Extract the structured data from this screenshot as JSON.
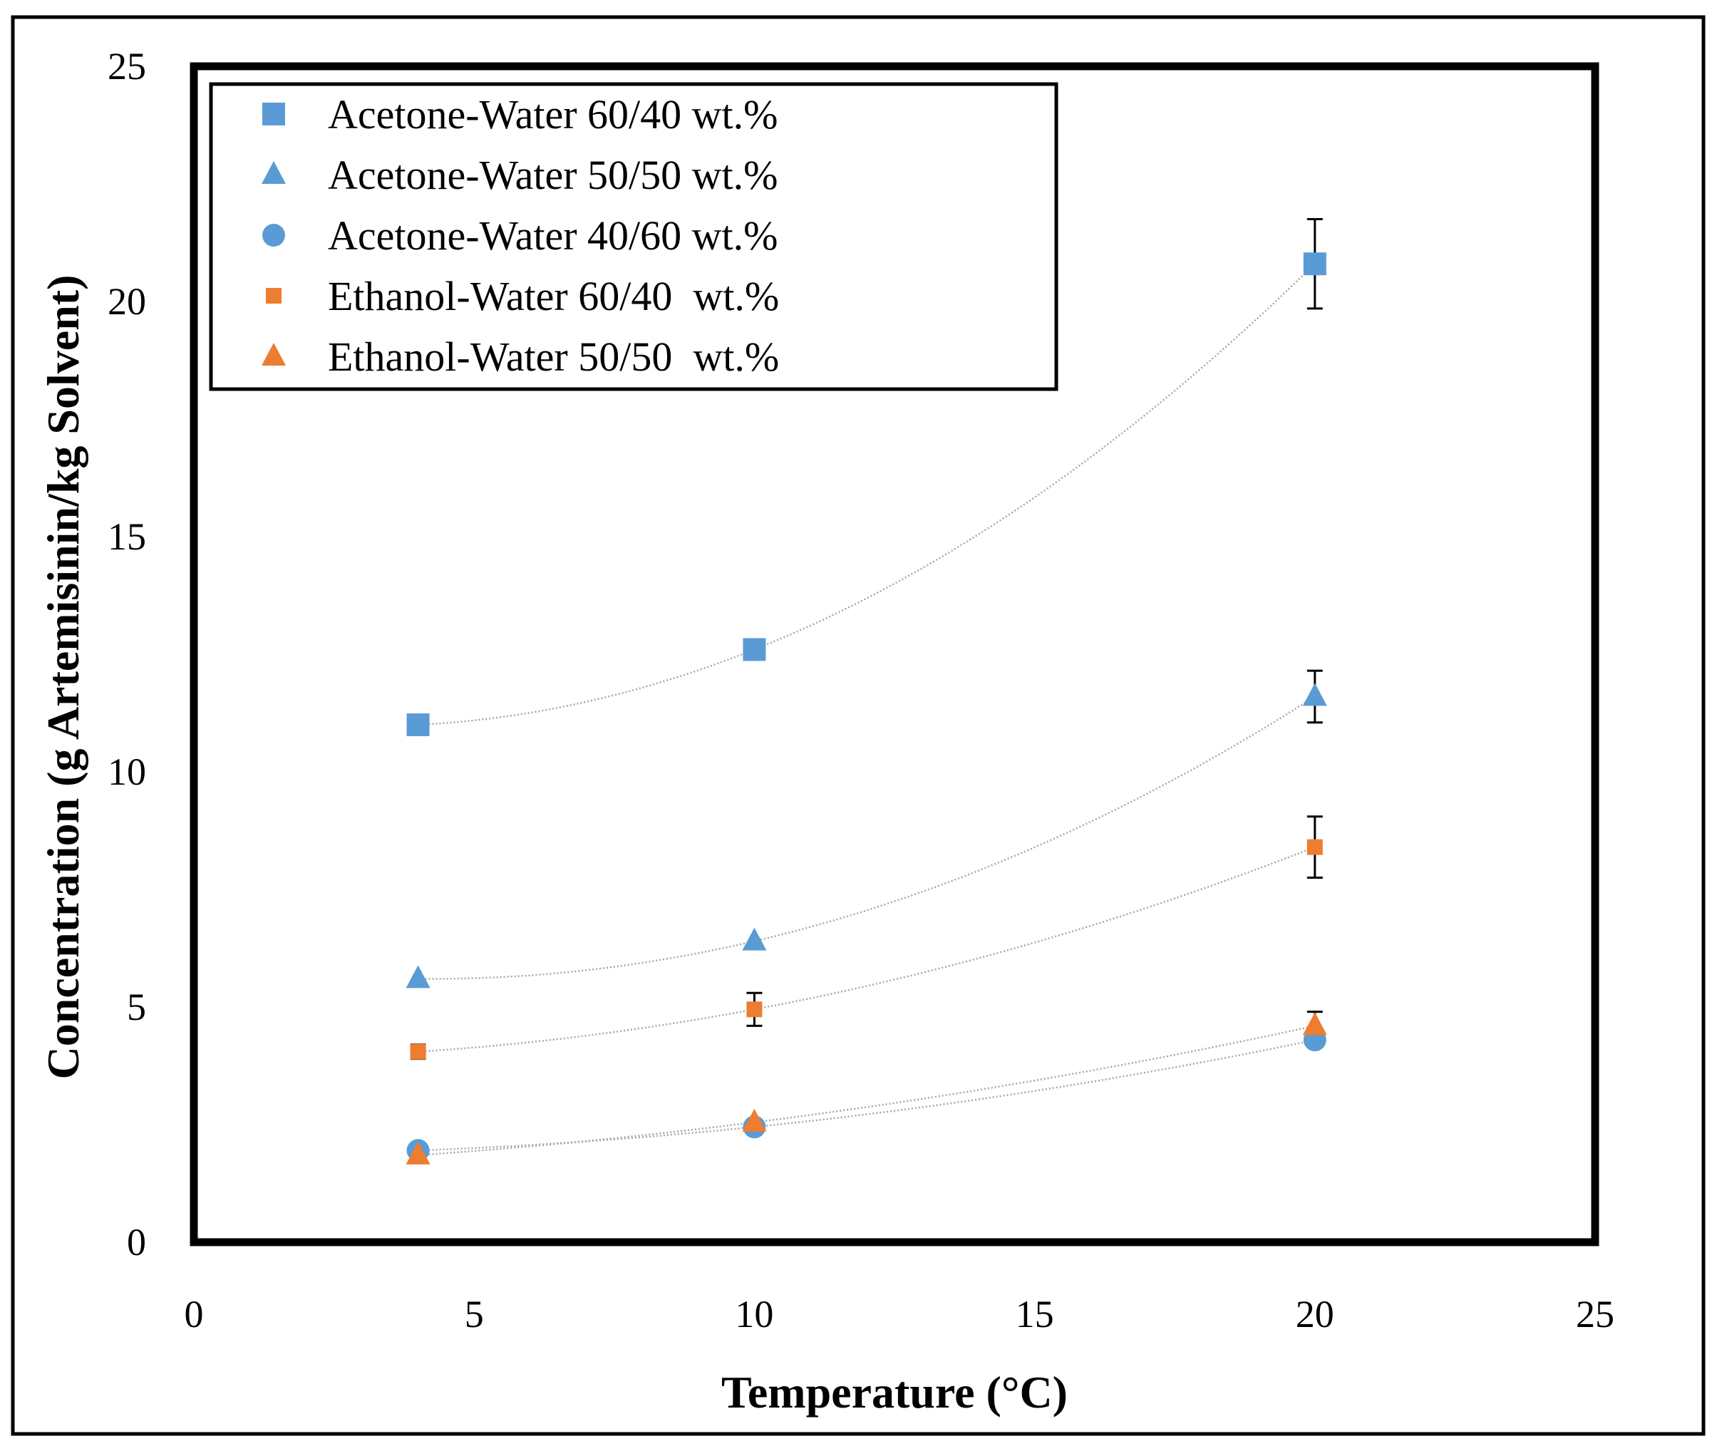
{
  "chart_data": {
    "type": "scatter",
    "title": "",
    "xlabel": "Temperature (°C)",
    "ylabel": "Concentration  (g Artemisinin/kg Solvent)",
    "xlim": [
      0,
      25
    ],
    "ylim": [
      0,
      25
    ],
    "x_ticks": [
      0,
      5,
      10,
      15,
      20,
      25
    ],
    "y_ticks": [
      0,
      5,
      10,
      15,
      20,
      25
    ],
    "grid": false,
    "legend_position": "top-left",
    "trendlines": "dotted polynomial fit per series",
    "series": [
      {
        "name": "Acetone-Water 60/40 wt.%",
        "marker": "square",
        "color": "#5b9bd5",
        "x": [
          4,
          10,
          20
        ],
        "y": [
          11.0,
          12.6,
          20.8
        ],
        "error": [
          0,
          0,
          0.95
        ]
      },
      {
        "name": "Acetone-Water 50/50 wt.%",
        "marker": "triangle",
        "color": "#5b9bd5",
        "x": [
          4,
          10,
          20
        ],
        "y": [
          5.6,
          6.4,
          11.6
        ],
        "error": [
          0,
          0,
          0.55
        ]
      },
      {
        "name": "Acetone-Water 40/60 wt.%",
        "marker": "circle",
        "color": "#5b9bd5",
        "x": [
          4,
          10,
          20
        ],
        "y": [
          1.95,
          2.45,
          4.3
        ],
        "error": [
          0,
          0,
          0
        ]
      },
      {
        "name": "Ethanol-Water 60/40  wt.%",
        "marker": "small-square",
        "color": "#ed7d31",
        "x": [
          4,
          10,
          20
        ],
        "y": [
          4.05,
          4.95,
          8.4
        ],
        "error": [
          0.15,
          0.35,
          0.65
        ]
      },
      {
        "name": "Ethanol-Water 50/50  wt.%",
        "marker": "triangle",
        "color": "#ed7d31",
        "x": [
          4,
          10,
          20
        ],
        "y": [
          1.85,
          2.55,
          4.6
        ],
        "error": [
          0,
          0,
          0.3
        ]
      }
    ]
  }
}
